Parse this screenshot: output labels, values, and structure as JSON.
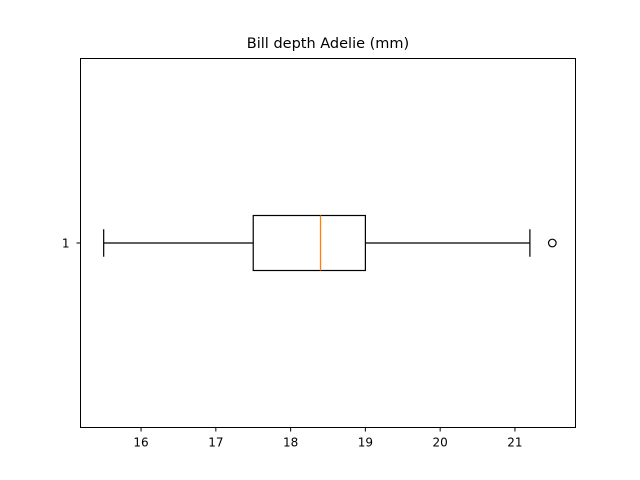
{
  "chart_data": {
    "type": "boxplot",
    "orientation": "horizontal",
    "title": "Bill depth Adelie (mm)",
    "xlabel": "",
    "ylabel": "",
    "xlim": [
      15.19,
      21.81
    ],
    "xticks": [
      16,
      17,
      18,
      19,
      20,
      21
    ],
    "yticks": [
      "1"
    ],
    "grid": false,
    "boxes": [
      {
        "label": "1",
        "whisker_low": 15.5,
        "q1": 17.5,
        "median": 18.4,
        "q3": 19.0,
        "whisker_high": 21.2,
        "outliers": [
          21.5
        ]
      }
    ],
    "colors": {
      "box": "#000000",
      "median": "#ff7f0e",
      "outlier": "#000000"
    }
  }
}
